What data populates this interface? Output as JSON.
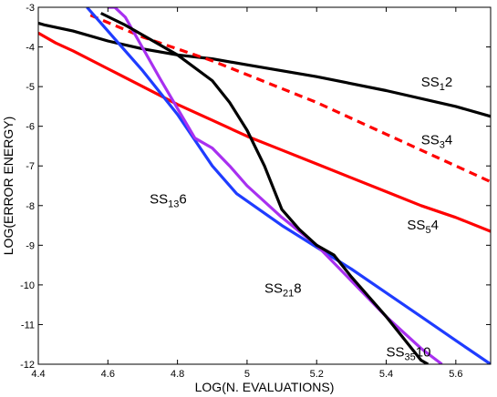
{
  "chart_data": {
    "type": "line",
    "title": "",
    "xlabel": "LOG(N. EVALUATIONS)",
    "ylabel": "LOG(ERROR ENERGY)",
    "xlim": [
      4.4,
      5.7
    ],
    "ylim": [
      -12,
      -3
    ],
    "xticks": [
      "4.4",
      "4.6",
      "4.8",
      "5",
      "5.2",
      "5.4",
      "5.6"
    ],
    "yticks": [
      "-3",
      "-4",
      "-5",
      "-6",
      "-7",
      "-8",
      "-9",
      "-10",
      "-11",
      "-12"
    ],
    "grid": false,
    "legend": "none",
    "series": [
      {
        "name": "SS12",
        "label_main": "SS",
        "label_sub": "1",
        "label_tail": "2",
        "color": "#000000",
        "dash": "solid",
        "x": [
          4.4,
          4.42,
          4.5,
          4.6,
          4.7,
          4.8,
          4.9,
          5.0,
          5.2,
          5.4,
          5.6,
          5.7
        ],
        "y": [
          -3.4,
          -3.45,
          -3.6,
          -3.85,
          -4.05,
          -4.2,
          -4.3,
          -4.45,
          -4.75,
          -5.1,
          -5.5,
          -5.75
        ]
      },
      {
        "name": "SS34",
        "label_main": "SS",
        "label_sub": "3",
        "label_tail": "4",
        "color": "#ff0000",
        "dash": "dashed",
        "x": [
          4.55,
          4.7,
          4.8,
          4.9,
          5.0,
          5.1,
          5.2,
          5.3,
          5.4,
          5.5,
          5.6,
          5.7
        ],
        "y": [
          -3.2,
          -3.75,
          -4.05,
          -4.35,
          -4.7,
          -5.05,
          -5.4,
          -5.8,
          -6.2,
          -6.6,
          -7.0,
          -7.4
        ]
      },
      {
        "name": "SS54",
        "label_main": "SS",
        "label_sub": "5",
        "label_tail": "4",
        "color": "#ff0000",
        "dash": "solid",
        "x": [
          4.4,
          4.45,
          4.5,
          4.6,
          4.7,
          4.8,
          4.9,
          5.0,
          5.1,
          5.2,
          5.3,
          5.4,
          5.5,
          5.6,
          5.7
        ],
        "y": [
          -3.65,
          -3.9,
          -4.1,
          -4.55,
          -5.0,
          -5.45,
          -5.85,
          -6.25,
          -6.6,
          -6.95,
          -7.3,
          -7.65,
          -8.0,
          -8.3,
          -8.65
        ]
      },
      {
        "name": "SS136",
        "label_main": "SS",
        "label_sub": "13",
        "label_tail": "6",
        "color": "#1f3cff",
        "dash": "solid",
        "x": [
          4.54,
          4.6,
          4.7,
          4.8,
          4.9,
          4.97,
          5.1,
          5.2,
          5.3,
          5.4,
          5.5,
          5.6,
          5.7
        ],
        "y": [
          -3.0,
          -3.6,
          -4.6,
          -5.7,
          -7.0,
          -7.7,
          -8.5,
          -9.05,
          -9.6,
          -10.2,
          -10.8,
          -11.4,
          -12.0
        ]
      },
      {
        "name": "SS218",
        "label_main": "SS",
        "label_sub": "21",
        "label_tail": "8",
        "color": "#a830f0",
        "dash": "solid",
        "x": [
          4.6,
          4.62,
          4.65,
          4.75,
          4.85,
          4.9,
          4.95,
          5.0,
          5.1,
          5.2,
          5.3,
          5.4,
          5.5,
          5.56
        ],
        "y": [
          -3.0,
          -3.0,
          -3.25,
          -4.8,
          -6.3,
          -6.55,
          -7.0,
          -7.5,
          -8.3,
          -9.0,
          -9.9,
          -10.8,
          -11.6,
          -12.0
        ]
      },
      {
        "name": "SS3510",
        "label_main": "SS",
        "label_sub": "35",
        "label_tail": "10",
        "color": "#000000",
        "dash": "solid",
        "x": [
          4.58,
          4.65,
          4.7,
          4.8,
          4.9,
          4.95,
          5.0,
          5.05,
          5.1,
          5.15,
          5.2,
          5.25,
          5.3,
          5.4,
          5.5,
          5.52
        ],
        "y": [
          -3.15,
          -3.45,
          -3.7,
          -4.2,
          -4.85,
          -5.4,
          -6.1,
          -7.0,
          -8.1,
          -8.6,
          -9.0,
          -9.25,
          -9.8,
          -10.8,
          -11.9,
          -12.0
        ]
      }
    ],
    "annotations": [
      {
        "series": "SS12",
        "x": 5.5,
        "y": -5.0
      },
      {
        "series": "SS34",
        "x": 5.5,
        "y": -6.45
      },
      {
        "series": "SS54",
        "x": 5.46,
        "y": -8.6
      },
      {
        "series": "SS136",
        "x": 4.72,
        "y": -7.95
      },
      {
        "series": "SS218",
        "x": 5.05,
        "y": -10.2
      },
      {
        "series": "SS3510",
        "x": 5.4,
        "y": -11.8
      }
    ]
  }
}
